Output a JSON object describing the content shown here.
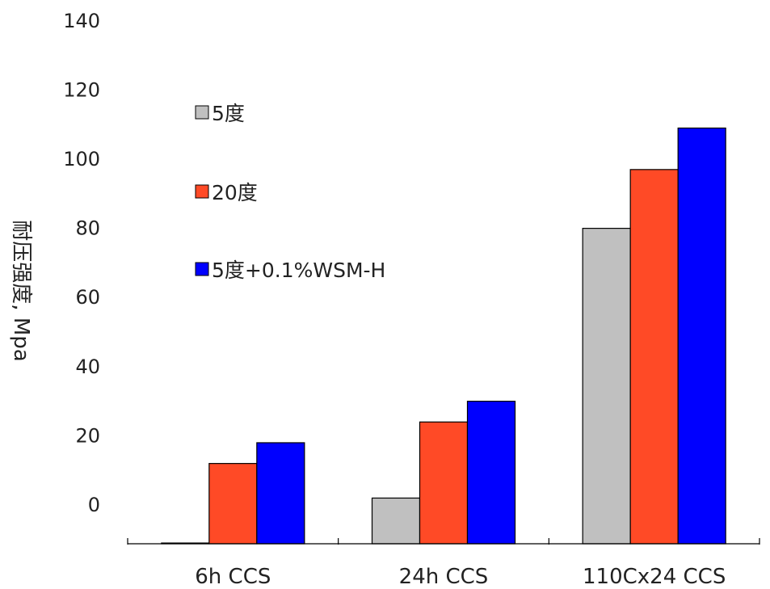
{
  "chart_data": {
    "type": "bar",
    "title": "",
    "xlabel": "",
    "ylabel": "耐压强度, Mpa",
    "categories": [
      "6h CCS",
      "24h CCS",
      "110Cx24 CCS"
    ],
    "series": [
      {
        "name": "5度",
        "color": "#c0c0c0",
        "values": [
          -11,
          2,
          80
        ]
      },
      {
        "name": "20度",
        "color": "#ff4a26",
        "values": [
          12,
          24,
          97
        ]
      },
      {
        "name": "5度+0.1%WSM-H",
        "color": "#0000ff",
        "values": [
          18,
          30,
          109
        ]
      }
    ],
    "yticks": [
      0,
      20,
      40,
      60,
      80,
      100,
      120,
      140
    ],
    "ylim": [
      -12,
      140
    ],
    "grid": false,
    "legend_position": "top-left"
  }
}
